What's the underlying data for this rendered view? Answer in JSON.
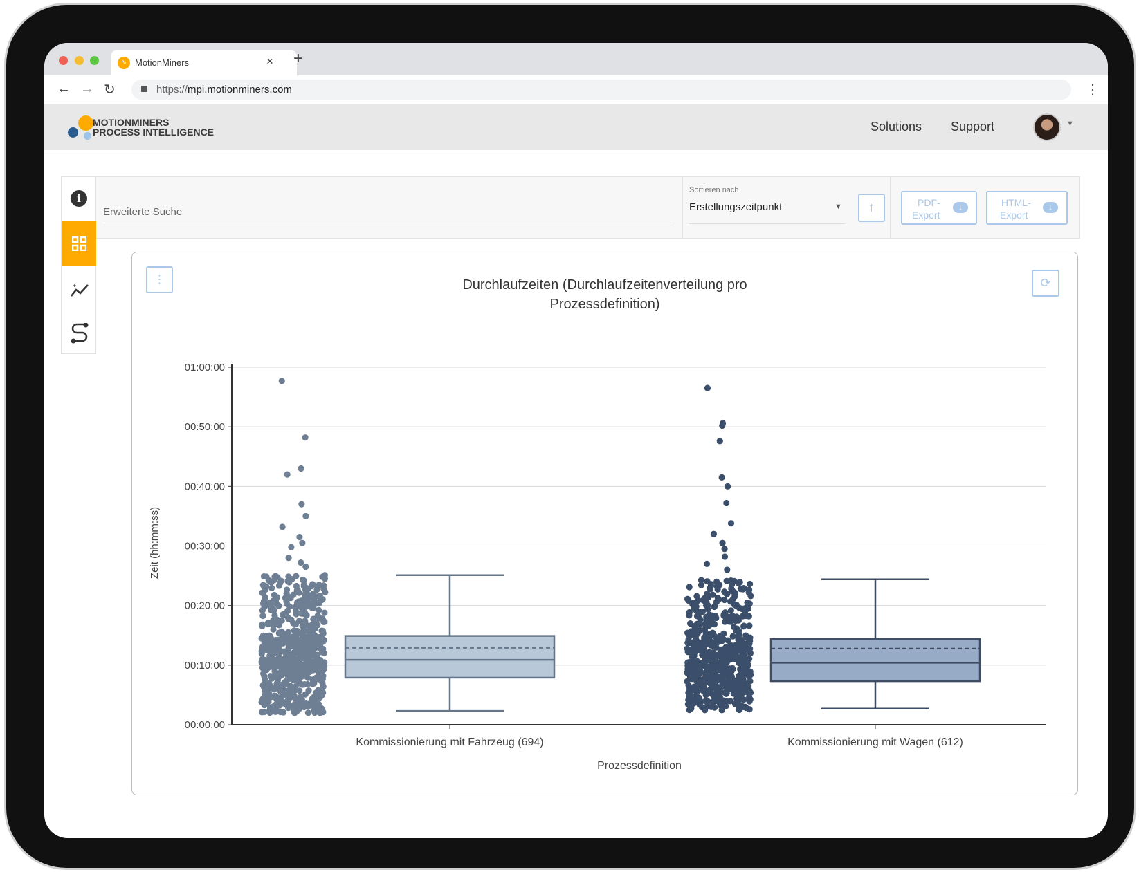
{
  "browser": {
    "tab_title": "MotionMiners",
    "url_scheme": "https://",
    "url_host": "mpi.motionminers.com"
  },
  "header": {
    "logo_line1": "MOTIONMINERS",
    "logo_line2": "PROCESS INTELLIGENCE",
    "nav": [
      "Solutions",
      "Support"
    ]
  },
  "toolbar": {
    "search_placeholder": "Erweiterte Suche",
    "sort_label": "Sortieren nach",
    "sort_value": "Erstellungszeitpunkt",
    "pdf_export": [
      "PDF-",
      "Export"
    ],
    "html_export": [
      "HTML-",
      "Export"
    ]
  },
  "colors": {
    "accent": "#ffaa00",
    "series1_points": "#6e7f94",
    "series1_box": "#b9c8d8",
    "series1_line": "#65768a",
    "series2_points": "#3b4f6b",
    "series2_box": "#97abc6",
    "series2_line": "#3e4d63",
    "button_border": "#a9c8ea"
  },
  "chart_data": {
    "type": "box",
    "title_lines": [
      "Durchlaufzeiten (Durchlaufzeitenverteilung pro",
      "Prozessdefinition)"
    ],
    "xlabel": "Prozessdefinition",
    "ylabel": "Zeit (hh:mm:ss)",
    "ylim_minutes": [
      0,
      60
    ],
    "yticks_minutes": [
      0,
      10,
      20,
      30,
      40,
      50,
      60
    ],
    "ytick_labels": [
      "00:00:00",
      "00:10:00",
      "00:20:00",
      "00:30:00",
      "00:40:00",
      "00:50:00",
      "01:00:00"
    ],
    "grid": true,
    "categories": [
      "Kommissionierung mit Fahrzeug (694)",
      "Kommissionierung mit Wagen (612)"
    ],
    "series": [
      {
        "name": "Kommissionierung mit Fahrzeug",
        "n": 694,
        "whisker_low": 2.3,
        "q1": 7.9,
        "median": 10.9,
        "mean": 12.9,
        "q3": 14.9,
        "whisker_high": 25.1,
        "min_point": 2.0,
        "outliers": [
          57.7,
          48.2,
          43.0,
          42.0,
          37.0,
          35.0,
          33.2,
          31.5,
          30.5,
          29.8,
          28.0,
          27.2,
          26.5
        ]
      },
      {
        "name": "Kommissionierung mit Wagen",
        "n": 612,
        "whisker_low": 2.7,
        "q1": 7.3,
        "median": 10.4,
        "mean": 12.8,
        "q3": 14.4,
        "whisker_high": 24.4,
        "min_point": 2.4,
        "outliers": [
          56.5,
          50.6,
          50.2,
          47.6,
          41.5,
          40.0,
          37.2,
          33.8,
          32.0,
          30.5,
          29.5,
          28.2,
          27.0,
          26.0
        ]
      }
    ]
  }
}
